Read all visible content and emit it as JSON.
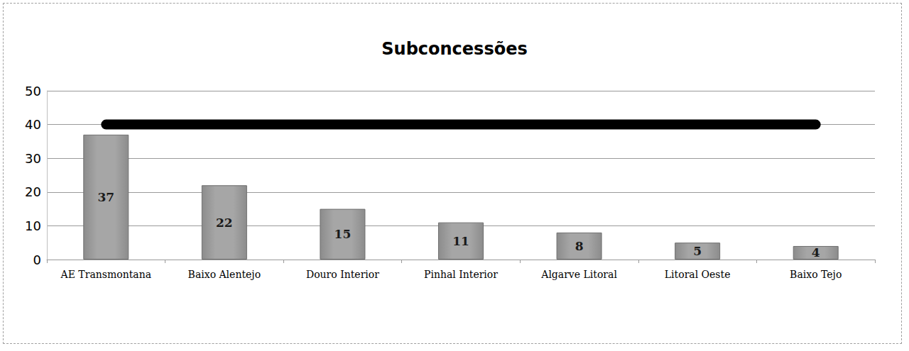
{
  "chart_data": {
    "type": "bar",
    "title": "Subconcessões",
    "categories": [
      "AE Transmontana",
      "Baixo Alentejo",
      "Douro Interior",
      "Pinhal Interior",
      "Algarve Litoral",
      "Litoral Oeste",
      "Baixo Tejo"
    ],
    "series": [
      {
        "type": "bar",
        "color": "#a6a6a6",
        "data_labels": true,
        "values": [
          37,
          22,
          15,
          11,
          8,
          5,
          4
        ]
      },
      {
        "type": "line",
        "color": "#000000",
        "line_style": "solid",
        "values": [
          40,
          40,
          40,
          40,
          40,
          40,
          40
        ]
      }
    ],
    "ylim": [
      0,
      50
    ],
    "yticks": [
      0,
      10,
      20,
      30,
      40,
      50
    ],
    "grid": true
  }
}
